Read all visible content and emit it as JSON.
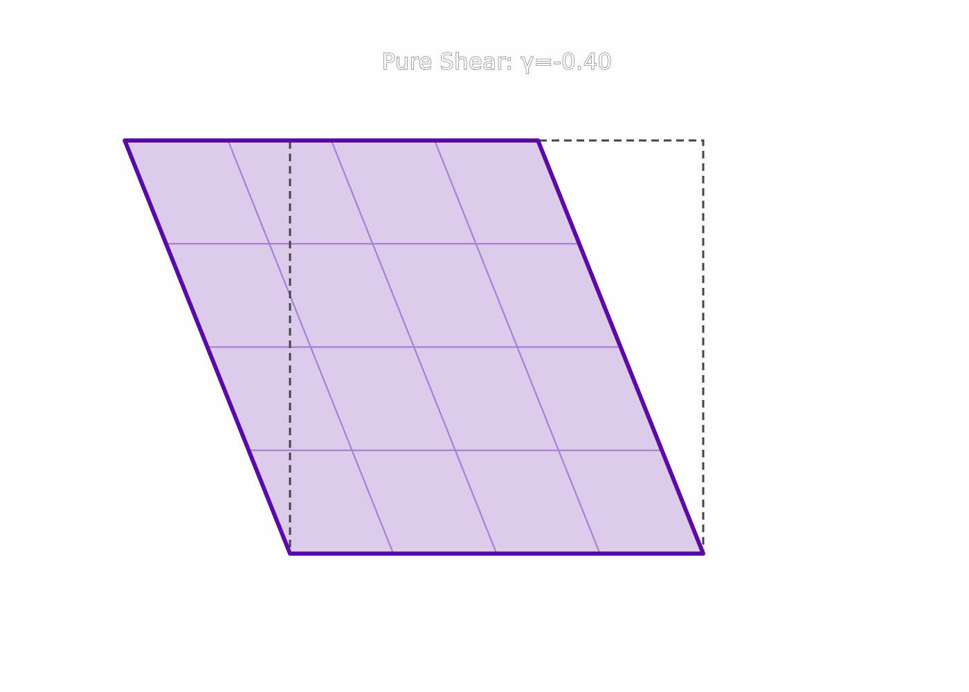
{
  "title": "Pure Shear: γ=-0.40",
  "shear": {
    "gamma": -0.4,
    "grid_divisions": 4
  },
  "colors": {
    "background": "#fdfdfd",
    "title_outline": "#555555",
    "reference_square_stroke": "#444444",
    "sheared_fill": "#dccbeb",
    "sheared_outline": "#5a0aa5",
    "grid_lines": "#a97fd6"
  }
}
